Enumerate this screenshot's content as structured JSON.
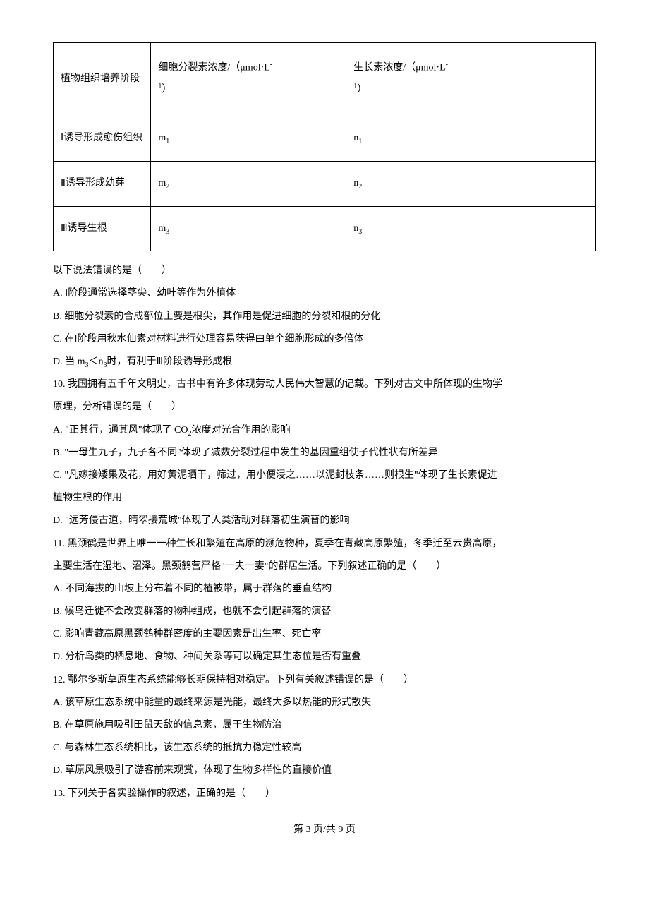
{
  "table": {
    "header": {
      "col1": "植物组织培养阶段",
      "col2_line1": "细胞分裂素浓度/（μmol·L",
      "col2_sup": "-",
      "col2_line2_sup": "1",
      "col2_end": "）",
      "col3_line1": "生长素浓度/（μmol·L",
      "col3_sup": "-",
      "col3_line2_sup": "1",
      "col3_end": "）"
    },
    "rows": [
      {
        "stage": "Ⅰ诱导形成愈伤组织",
        "m": "m",
        "m_sub": "1",
        "n": "n",
        "n_sub": "1"
      },
      {
        "stage": "Ⅱ诱导形成幼芽",
        "m": "m",
        "m_sub": "2",
        "n": "n",
        "n_sub": "2"
      },
      {
        "stage": "Ⅲ诱导生根",
        "m": "m",
        "m_sub": "3",
        "n": "n",
        "n_sub": "3"
      }
    ]
  },
  "lines": {
    "q_intro": "以下说法错误的是（　　）",
    "opt_a": "A. Ⅰ阶段通常选择茎尖、幼叶等作为外植体",
    "opt_b": "B. 细胞分裂素的合成部位主要是根尖，其作用是促进细胞的分裂和根的分化",
    "opt_c": "C. 在Ⅰ阶段用秋水仙素对材料进行处理容易获得由单个细胞形成的多倍体",
    "opt_d_pre": "D. 当 m",
    "opt_d_sub1": "3",
    "opt_d_mid": "＜n",
    "opt_d_sub2": "3",
    "opt_d_post": "时，有利于Ⅲ阶段诱导形成根",
    "q10_l1": "10. 我国拥有五千年文明史，古书中有许多体现劳动人民伟大智慧的记载。下列对古文中所体现的生物学",
    "q10_l2": "原理，分析错误的是（　　）",
    "q10_a_pre": "A. \"正其行，通其风\"体现了 CO",
    "q10_a_sub": "2",
    "q10_a_post": "浓度对光合作用的影响",
    "q10_b": "B. \"一母生九子，九子各不同\"体现了减数分裂过程中发生的基因重组使子代性状有所差异",
    "q10_c_l1": "C. \"凡嫁接矮果及花，用好黄泥晒干，筛过，用小便浸之……以泥封枝条……则根生\"体现了生长素促进",
    "q10_c_l2": "植物生根的作用",
    "q10_d": "D. \"远芳侵古道，晴翠接荒城\"体现了人类活动对群落初生演替的影响",
    "q11_l1": "11. 黑颈鹤是世界上唯一一种生长和繁殖在高原的濒危物种，夏季在青藏高原繁殖，冬季迁至云贵高原，",
    "q11_l2": "主要生活在湿地、沼泽。黑颈鹤营严格\"一夫一妻\"的群居生活。下列叙述正确的是（　　）",
    "q11_a": "A. 不同海拔的山坡上分布着不同的植被带，属于群落的垂直结构",
    "q11_b": "B. 候鸟迁徙不会改变群落的物种组成，也就不会引起群落的演替",
    "q11_c": "C. 影响青藏高原黑颈鹤种群密度的主要因素是出生率、死亡率",
    "q11_d": "D. 分析鸟类的栖息地、食物、种间关系等可以确定其生态位是否有重叠",
    "q12_l1": "12. 鄂尔多斯草原生态系统能够长期保持相对稳定。下列有关叙述错误的是（　　）",
    "q12_a": "A. 该草原生态系统中能量的最终来源是光能，最终大多以热能的形式散失",
    "q12_b": "B. 在草原施用吸引田鼠天敌的信息素，属于生物防治",
    "q12_c": "C. 与森林生态系统相比，该生态系统的抵抗力稳定性较高",
    "q12_d": "D. 草原风景吸引了游客前来观赏，体现了生物多样性的直接价值",
    "q13": "13. 下列关于各实验操作的叙述，正确的是（　　）"
  },
  "footer": "第 3 页/共 9 页"
}
